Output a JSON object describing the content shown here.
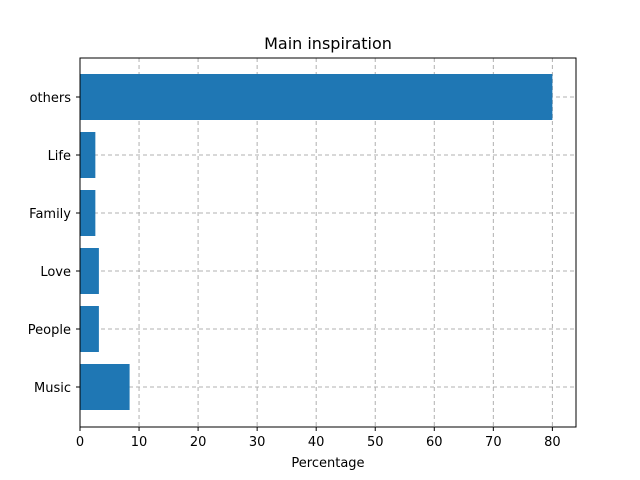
{
  "chart_data": {
    "type": "bar",
    "orientation": "horizontal",
    "title": "Main inspiration",
    "xlabel": "Percentage",
    "ylabel": "",
    "categories": [
      "Music",
      "People",
      "Love",
      "Family",
      "Life",
      "others"
    ],
    "values": [
      8.4,
      3.2,
      3.2,
      2.6,
      2.6,
      80.0
    ],
    "xlim": [
      0,
      84
    ],
    "xticks": [
      0,
      10,
      20,
      30,
      40,
      50,
      60,
      70,
      80
    ],
    "grid": true,
    "bar_color": "#1f77b4"
  }
}
